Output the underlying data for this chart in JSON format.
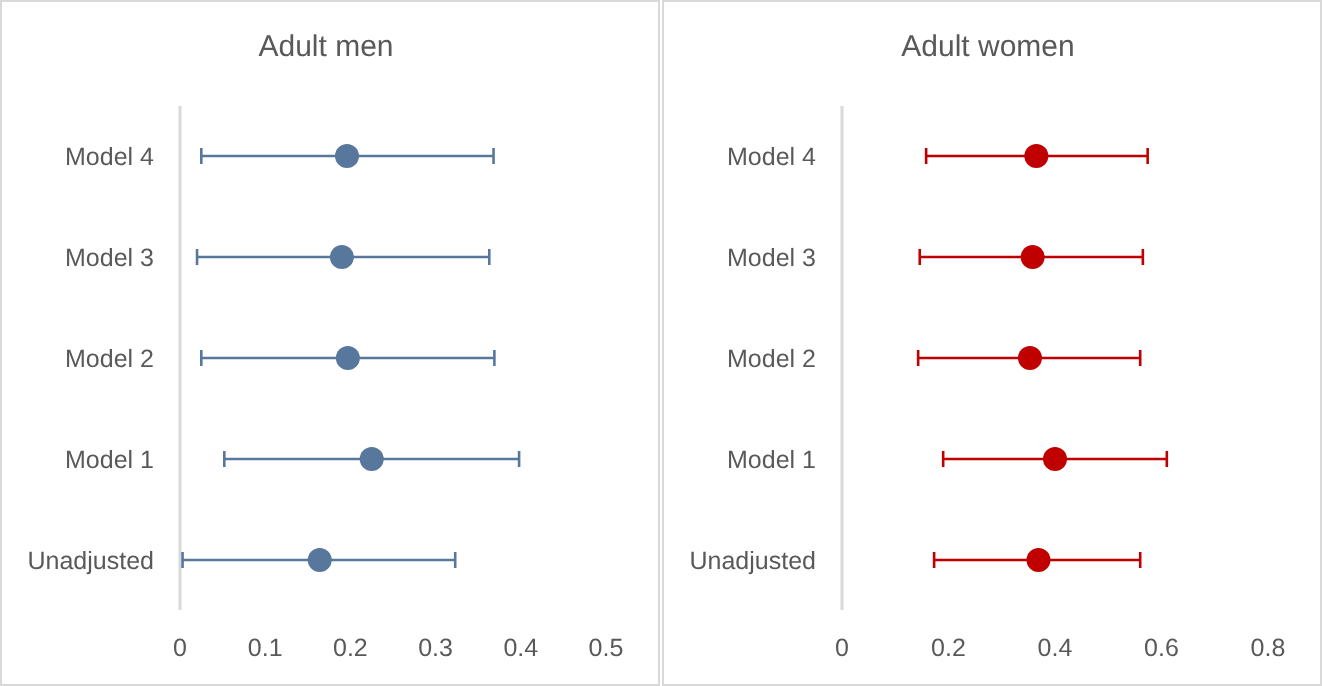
{
  "chart_data": [
    {
      "type": "scatter",
      "title": "Adult men",
      "orientation": "horizontal",
      "categories": [
        "Model 4",
        "Model 3",
        "Model 2",
        "Model 1",
        "Unadjusted"
      ],
      "values": [
        0.196,
        0.19,
        0.197,
        0.225,
        0.164
      ],
      "errors": [
        [
          0.025,
          0.368
        ],
        [
          0.02,
          0.363
        ],
        [
          0.025,
          0.369
        ],
        [
          0.052,
          0.398
        ],
        [
          0.003,
          0.323
        ]
      ],
      "color": "#58779c",
      "marker": "circle",
      "xlim": [
        0,
        0.5
      ],
      "xticks": [
        0,
        0.1,
        0.2,
        0.3,
        0.4,
        0.5
      ],
      "grid": false
    },
    {
      "type": "scatter",
      "title": "Adult women",
      "orientation": "horizontal",
      "categories": [
        "Model 4",
        "Model 3",
        "Model 2",
        "Model 1",
        "Unadjusted"
      ],
      "values": [
        0.365,
        0.358,
        0.353,
        0.4,
        0.369
      ],
      "errors": [
        [
          0.158,
          0.574
        ],
        [
          0.146,
          0.565
        ],
        [
          0.143,
          0.56
        ],
        [
          0.19,
          0.61
        ],
        [
          0.173,
          0.56
        ]
      ],
      "color": "#c00000",
      "marker": "circle",
      "xlim": [
        0,
        0.8
      ],
      "xticks": [
        0,
        0.2,
        0.4,
        0.6,
        0.8
      ],
      "grid": false
    }
  ]
}
